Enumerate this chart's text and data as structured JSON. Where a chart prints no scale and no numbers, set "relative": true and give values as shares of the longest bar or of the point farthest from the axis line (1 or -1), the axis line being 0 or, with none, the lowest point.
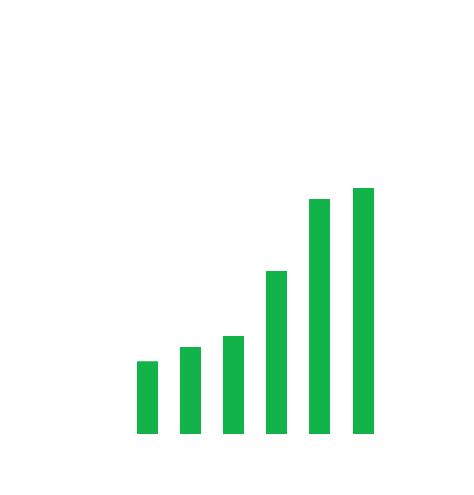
{
  "chart_data": {
    "type": "bar",
    "relative": true,
    "categories": [
      null,
      null,
      null,
      null,
      null,
      null
    ],
    "values": [
      0.295,
      0.352,
      0.398,
      0.665,
      0.955,
      1
    ],
    "color": "#12b348"
  }
}
